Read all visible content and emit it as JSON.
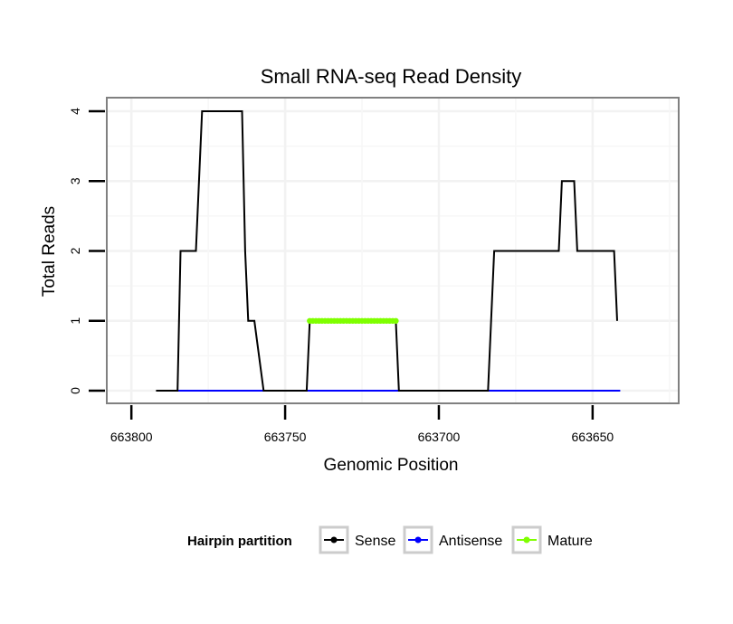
{
  "chart_data": {
    "type": "line",
    "title": "Small RNA-seq Read Density",
    "xlabel": "Genomic Position",
    "ylabel": "Total Reads",
    "xlim": [
      663808,
      663622
    ],
    "ylim": [
      0,
      4
    ],
    "x_reversed": true,
    "x_ticks": [
      663800,
      663750,
      663700,
      663650
    ],
    "x_tick_labels": [
      "663800",
      "663750",
      "663700",
      "663650"
    ],
    "y_ticks": [
      0,
      1,
      2,
      3,
      4
    ],
    "y_tick_labels": [
      "0",
      "1",
      "2",
      "3",
      "4"
    ],
    "grid": true,
    "legend": {
      "position": "bottom",
      "title": "Hairpin partition",
      "entries": [
        {
          "name": "Sense",
          "color": "#000000"
        },
        {
          "name": "Antisense",
          "color": "#0000ff"
        },
        {
          "name": "Mature",
          "color": "#7fff00"
        }
      ]
    },
    "series": [
      {
        "name": "Sense",
        "color": "#000000",
        "x": [
          663792,
          663785,
          663784,
          663779,
          663777,
          663764,
          663763,
          663762,
          663760,
          663757,
          663755,
          663743,
          663742,
          663714,
          663713,
          663684,
          663682,
          663661,
          663660,
          663656,
          663655,
          663643,
          663642
        ],
        "y": [
          0,
          0,
          2,
          2,
          4,
          4,
          2,
          1,
          1,
          0,
          0,
          0,
          1,
          1,
          0,
          0,
          2,
          2,
          3,
          3,
          2,
          2,
          1
        ]
      },
      {
        "name": "Antisense",
        "color": "#0000ff",
        "x": [
          663785,
          663641
        ],
        "y": [
          0,
          0
        ]
      },
      {
        "name": "Mature",
        "color": "#7fff00",
        "x": [
          663742,
          663714
        ],
        "y": [
          1,
          1
        ]
      }
    ]
  }
}
